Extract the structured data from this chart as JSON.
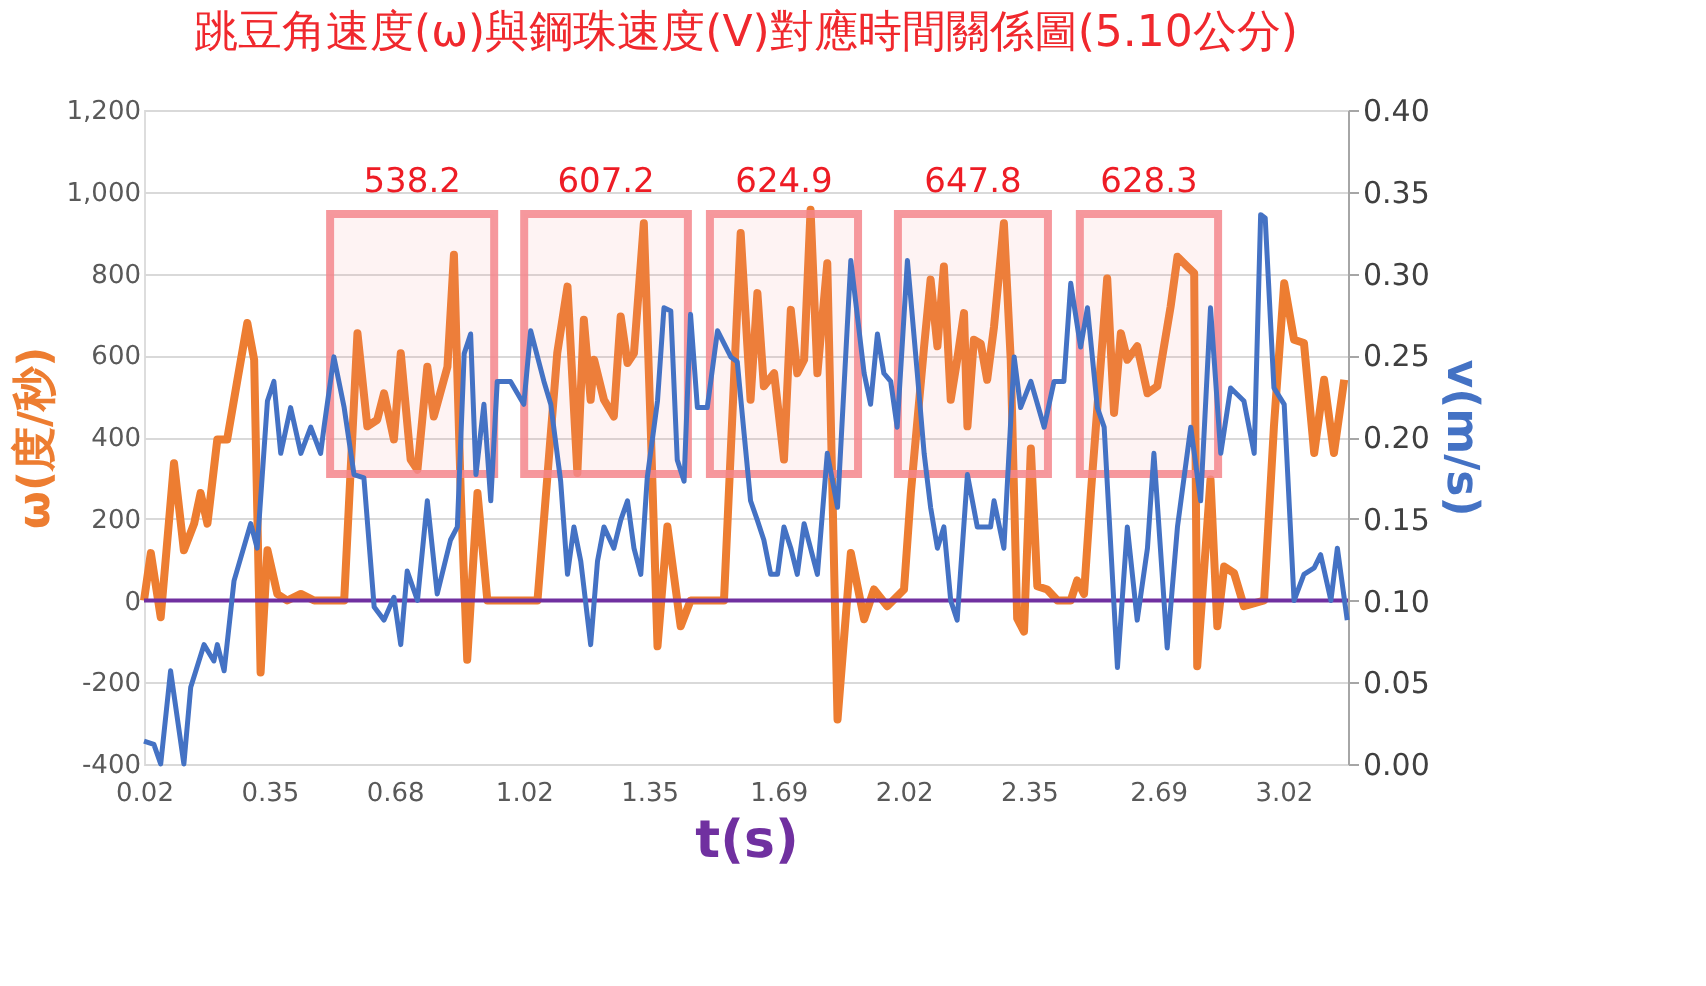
{
  "chart_data": {
    "type": "line",
    "title": "跳豆角速度(ω)與鋼珠速度(V)對應時間關係圖(5.10公分)",
    "xlabel": "t(s)",
    "ylabel": "ω(度/秒)",
    "y2label": "v(m/s)",
    "xlim": [
      0.02,
      3.19
    ],
    "xticks": [
      0.02,
      0.35,
      0.68,
      1.02,
      1.35,
      1.69,
      2.02,
      2.35,
      2.69,
      3.02
    ],
    "ylim": [
      -400,
      1200
    ],
    "yticks": [
      -400,
      -200,
      0,
      200,
      400,
      600,
      800,
      {
        "value": 1000,
        "label": "1,000"
      },
      {
        "value": 1200,
        "label": "1,200"
      }
    ],
    "y2lim": [
      0,
      0.4
    ],
    "y2ticks": [
      {
        "value": 0,
        "label": "0.00"
      },
      0.05,
      {
        "value": 0.1,
        "label": "0.10"
      },
      0.15,
      {
        "value": 0.2,
        "label": "0.20"
      },
      0.25,
      {
        "value": 0.3,
        "label": "0.30"
      },
      0.35,
      {
        "value": 0.4,
        "label": "0.40"
      }
    ],
    "grid": "y",
    "marker": "none",
    "line_style": "solid",
    "ref_lines": [
      {
        "axis": "y",
        "value": 0,
        "color": "#7030a0"
      }
    ],
    "bands": [
      {
        "axis": "x",
        "from": 0.51,
        "to": 0.942,
        "label": "538.2",
        "color": "#f4868c"
      },
      {
        "axis": "x",
        "from": 1.021,
        "to": 1.452,
        "label": "607.2",
        "color": "#f4868c"
      },
      {
        "axis": "x",
        "from": 1.51,
        "to": 1.9,
        "label": "624.9",
        "color": "#f4868c"
      },
      {
        "axis": "x",
        "from": 2.005,
        "to": 2.4,
        "label": "647.8",
        "color": "#f4868c"
      },
      {
        "axis": "x",
        "from": 2.484,
        "to": 2.848,
        "label": "628.3",
        "color": "#f4868c"
      }
    ],
    "series": [
      {
        "color": "#ed7d31",
        "x": [
          0.02,
          0.038,
          0.064,
          0.099,
          0.125,
          0.152,
          0.169,
          0.187,
          0.213,
          0.239,
          0.266,
          0.292,
          0.31,
          0.327,
          0.345,
          0.371,
          0.397,
          0.433,
          0.468,
          0.547,
          0.582,
          0.608,
          0.634,
          0.652,
          0.678,
          0.696,
          0.722,
          0.74,
          0.766,
          0.783,
          0.819,
          0.836,
          0.854,
          0.871,
          0.898,
          0.924,
          1.02,
          1.056,
          1.108,
          1.135,
          1.161,
          1.178,
          1.196,
          1.205,
          1.231,
          1.257,
          1.275,
          1.293,
          1.31,
          1.336,
          1.354,
          1.372,
          1.398,
          1.433,
          1.459,
          1.547,
          1.591,
          1.617,
          1.635,
          1.652,
          1.679,
          1.705,
          1.723,
          1.74,
          1.758,
          1.775,
          1.793,
          1.819,
          1.846,
          1.881,
          1.916,
          1.942,
          1.977,
          2.021,
          2.039,
          2.074,
          2.091,
          2.109,
          2.126,
          2.144,
          2.161,
          2.179,
          2.188,
          2.205,
          2.223,
          2.24,
          2.258,
          2.284,
          2.302,
          2.319,
          2.337,
          2.355,
          2.372,
          2.398,
          2.425,
          2.46,
          2.477,
          2.495,
          2.513,
          2.556,
          2.574,
          2.592,
          2.609,
          2.635,
          2.662,
          2.688,
          2.723,
          2.741,
          2.767,
          2.785,
          2.793,
          2.828,
          2.846,
          2.864,
          2.89,
          2.916,
          2.969,
          2.995,
          3.022,
          3.048,
          3.074,
          3.101,
          3.127,
          3.153,
          3.18
        ],
        "values": [
          0,
          116,
          -41,
          336,
          123,
          188,
          263,
          188,
          394,
          394,
          540,
          679,
          589,
          -176,
          123,
          16,
          0,
          16,
          0,
          0,
          654,
          426,
          442,
          507,
          394,
          605,
          345,
          320,
          572,
          450,
          572,
          846,
          263,
          -145,
          263,
          0,
          0,
          0,
          605,
          768,
          312,
          687,
          491,
          589,
          491,
          450,
          695,
          581,
          605,
          923,
          426,
          -112,
          181,
          -63,
          0,
          0,
          899,
          491,
          752,
          524,
          556,
          345,
          711,
          556,
          589,
          956,
          556,
          825,
          -291,
          116,
          -46,
          27,
          -14,
          27,
          263,
          622,
          785,
          622,
          817,
          491,
          589,
          703,
          426,
          638,
          628,
          540,
          670,
          923,
          589,
          -44,
          -76,
          372,
          35,
          27,
          0,
          0,
          49,
          16,
          263,
          788,
          459,
          654,
          589,
          622,
          507,
          524,
          719,
          841,
          817,
          801,
          -161,
          296,
          -63,
          83,
          67,
          -14,
          0,
          426,
          776,
          638,
          630,
          361,
          540,
          361,
          540
        ]
      },
      {
        "color": "#4472c4",
        "axis": "y2",
        "x": [
          0.02,
          0.046,
          0.064,
          0.09,
          0.125,
          0.143,
          0.178,
          0.204,
          0.213,
          0.231,
          0.257,
          0.301,
          0.318,
          0.345,
          0.362,
          0.38,
          0.406,
          0.433,
          0.459,
          0.485,
          0.494,
          0.52,
          0.547,
          0.573,
          0.599,
          0.626,
          0.652,
          0.678,
          0.696,
          0.713,
          0.74,
          0.766,
          0.792,
          0.827,
          0.845,
          0.863,
          0.88,
          0.894,
          0.915,
          0.933,
          0.95,
          0.985,
          1.02,
          1.038,
          1.073,
          1.091,
          1.117,
          1.135,
          1.152,
          1.17,
          1.196,
          1.214,
          1.231,
          1.257,
          1.275,
          1.293,
          1.31,
          1.328,
          1.345,
          1.372,
          1.389,
          1.407,
          1.424,
          1.442,
          1.459,
          1.477,
          1.503,
          1.53,
          1.565,
          1.582,
          1.6,
          1.617,
          1.635,
          1.652,
          1.67,
          1.688,
          1.705,
          1.723,
          1.74,
          1.758,
          1.793,
          1.819,
          1.846,
          1.881,
          1.916,
          1.933,
          1.951,
          1.968,
          1.986,
          2.003,
          2.03,
          2.056,
          2.074,
          2.091,
          2.109,
          2.126,
          2.144,
          2.161,
          2.188,
          2.214,
          2.249,
          2.258,
          2.284,
          2.311,
          2.328,
          2.355,
          2.39,
          2.416,
          2.442,
          2.46,
          2.486,
          2.504,
          2.53,
          2.548,
          2.583,
          2.609,
          2.635,
          2.662,
          2.679,
          2.714,
          2.741,
          2.776,
          2.802,
          2.828,
          2.855,
          2.881,
          2.916,
          2.943,
          2.96,
          2.972,
          2.995,
          3.022,
          3.048,
          3.074,
          3.101,
          3.118,
          3.145,
          3.162,
          3.188
        ],
        "values": [
          0.014,
          0.012,
          0.0,
          0.057,
          0.0,
          0.047,
          0.073,
          0.063,
          0.073,
          0.057,
          0.112,
          0.147,
          0.132,
          0.222,
          0.234,
          0.19,
          0.218,
          0.19,
          0.206,
          0.19,
          0.206,
          0.249,
          0.218,
          0.177,
          0.175,
          0.096,
          0.088,
          0.102,
          0.073,
          0.118,
          0.1,
          0.161,
          0.104,
          0.137,
          0.145,
          0.251,
          0.263,
          0.177,
          0.22,
          0.161,
          0.234,
          0.234,
          0.22,
          0.265,
          0.234,
          0.22,
          0.173,
          0.116,
          0.145,
          0.124,
          0.073,
          0.124,
          0.145,
          0.132,
          0.149,
          0.161,
          0.132,
          0.116,
          0.175,
          0.222,
          0.279,
          0.277,
          0.186,
          0.173,
          0.275,
          0.218,
          0.218,
          0.265,
          0.249,
          0.246,
          0.202,
          0.161,
          0.149,
          0.137,
          0.116,
          0.116,
          0.145,
          0.132,
          0.116,
          0.147,
          0.116,
          0.19,
          0.157,
          0.308,
          0.239,
          0.22,
          0.263,
          0.239,
          0.234,
          0.206,
          0.308,
          0.239,
          0.19,
          0.157,
          0.132,
          0.145,
          0.1,
          0.088,
          0.177,
          0.145,
          0.145,
          0.161,
          0.132,
          0.249,
          0.218,
          0.234,
          0.206,
          0.234,
          0.234,
          0.294,
          0.255,
          0.279,
          0.218,
          0.206,
          0.059,
          0.145,
          0.088,
          0.132,
          0.19,
          0.071,
          0.145,
          0.206,
          0.161,
          0.279,
          0.19,
          0.23,
          0.222,
          0.19,
          0.336,
          0.334,
          0.23,
          0.22,
          0.1,
          0.116,
          0.12,
          0.128,
          0.1,
          0.132,
          0.088
        ]
      }
    ]
  }
}
